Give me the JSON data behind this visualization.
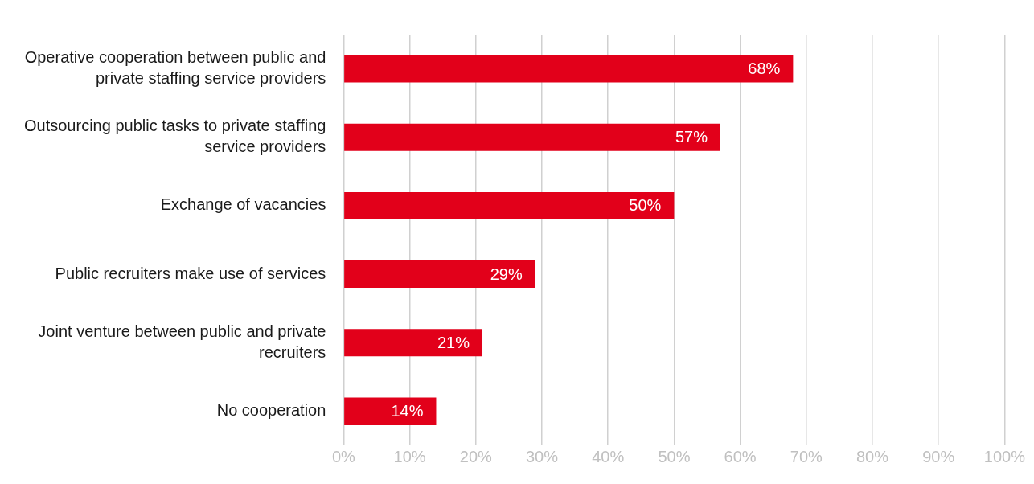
{
  "chart_data": {
    "type": "bar",
    "orientation": "horizontal",
    "categories": [
      "Operative cooperation between public and private staffing service providers",
      "Outsourcing public tasks to private staffing service providers",
      "Exchange of vacancies",
      "Public recruiters make use of services",
      "Joint venture between public and private recruiters",
      "No cooperation"
    ],
    "values": [
      68,
      57,
      50,
      29,
      21,
      14
    ],
    "value_labels": [
      "68%",
      "57%",
      "50%",
      "29%",
      "21%",
      "14%"
    ],
    "color": "#e2001a",
    "xlim": [
      0,
      100
    ],
    "xticks": [
      {
        "value": 0,
        "label": "0%"
      },
      {
        "value": 10,
        "label": "10%"
      },
      {
        "value": 20,
        "label": "20%"
      },
      {
        "value": 30,
        "label": "30%"
      },
      {
        "value": 40,
        "label": "40%"
      },
      {
        "value": 50,
        "label": "50%"
      },
      {
        "value": 60,
        "label": "60%"
      },
      {
        "value": 70,
        "label": "70%"
      },
      {
        "value": 80,
        "label": "80%"
      },
      {
        "value": 90,
        "label": "90%"
      },
      {
        "value": 100,
        "label": "100%"
      }
    ],
    "grid": "x",
    "legend": false
  }
}
